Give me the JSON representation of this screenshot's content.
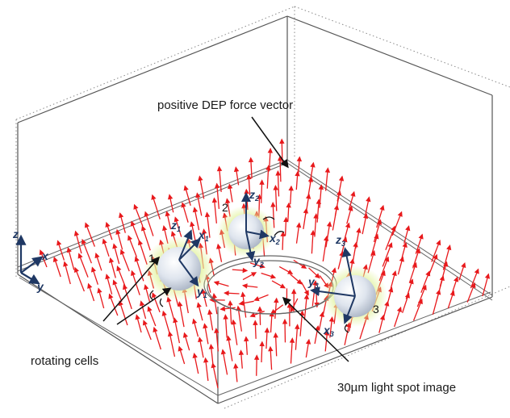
{
  "labels": {
    "dep_force": "positive DEP force vector",
    "rotating_cells": "rotating cells",
    "light_spot": "30µm light spot image"
  },
  "global_axes": {
    "z": "z",
    "x": "x",
    "y": "y"
  },
  "cells": [
    {
      "number": "1",
      "axes": [
        {
          "base": "z",
          "sub": "1"
        },
        {
          "base": "x",
          "sub": "1"
        },
        {
          "base": "y",
          "sub": "1"
        }
      ]
    },
    {
      "number": "2",
      "axes": [
        {
          "base": "z",
          "sub": "2"
        },
        {
          "base": "x",
          "sub": "2"
        },
        {
          "base": "y",
          "sub": "2"
        }
      ]
    },
    {
      "number": "3",
      "axes": [
        {
          "base": "z",
          "sub": "3"
        },
        {
          "base": "x",
          "sub": "3"
        },
        {
          "base": "y",
          "sub": "3"
        }
      ]
    }
  ],
  "colors": {
    "arrow": "#e8191c",
    "axis": "#1f3864",
    "cell": "#dde3ec",
    "glow": "#d7ef8a"
  }
}
